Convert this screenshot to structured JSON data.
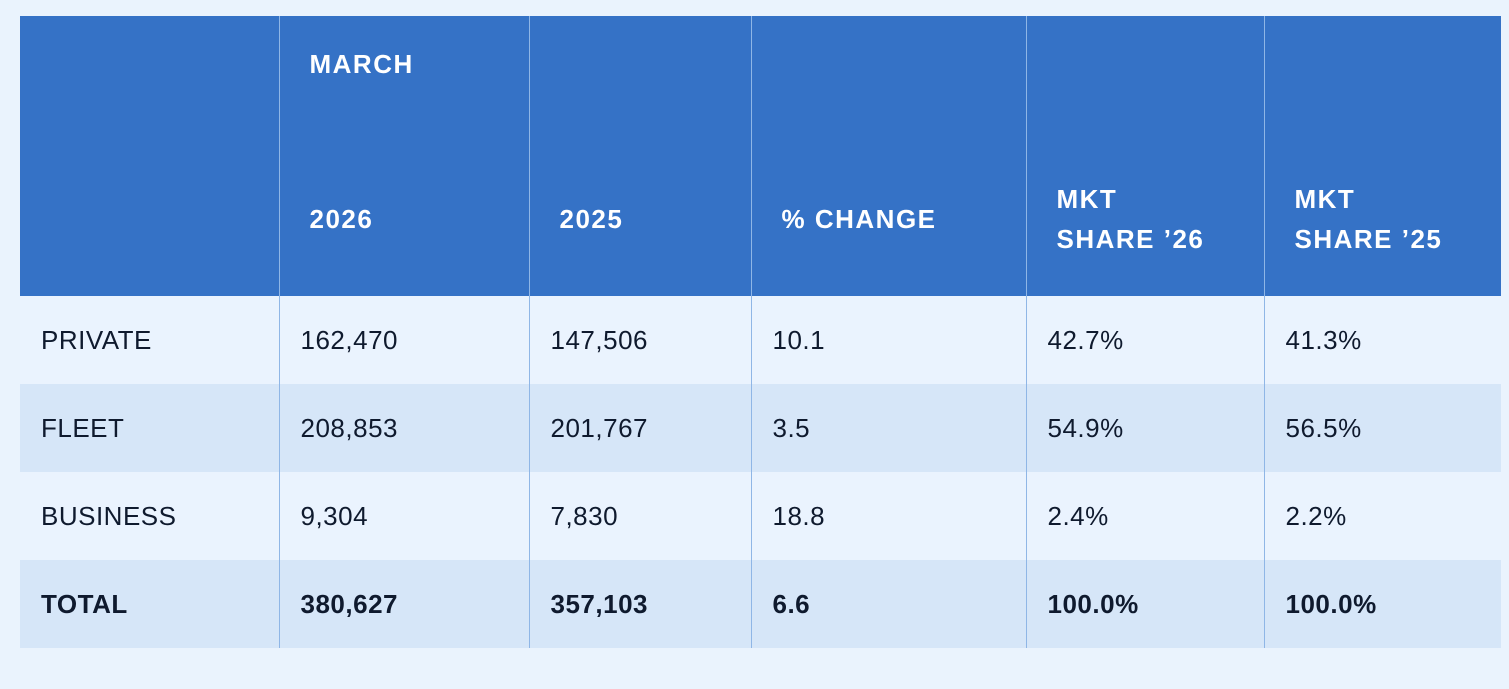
{
  "table": {
    "header": {
      "group": "MARCH",
      "columns": [
        "2026",
        "2025",
        "% CHANGE",
        "MKT SHARE ’26",
        "MKT SHARE ’25"
      ]
    },
    "rows": [
      [
        "PRIVATE",
        "162,470",
        "147,506",
        "10.1",
        "42.7%",
        "41.3%"
      ],
      [
        "FLEET",
        "208,853",
        "201,767",
        "3.5",
        "54.9%",
        "56.5%"
      ],
      [
        "BUSINESS",
        "9,304",
        "7,830",
        "18.8",
        "2.4%",
        "2.2%"
      ]
    ],
    "total": [
      "TOTAL",
      "380,627",
      "357,103",
      "6.6",
      "100.0%",
      "100.0%"
    ]
  }
}
